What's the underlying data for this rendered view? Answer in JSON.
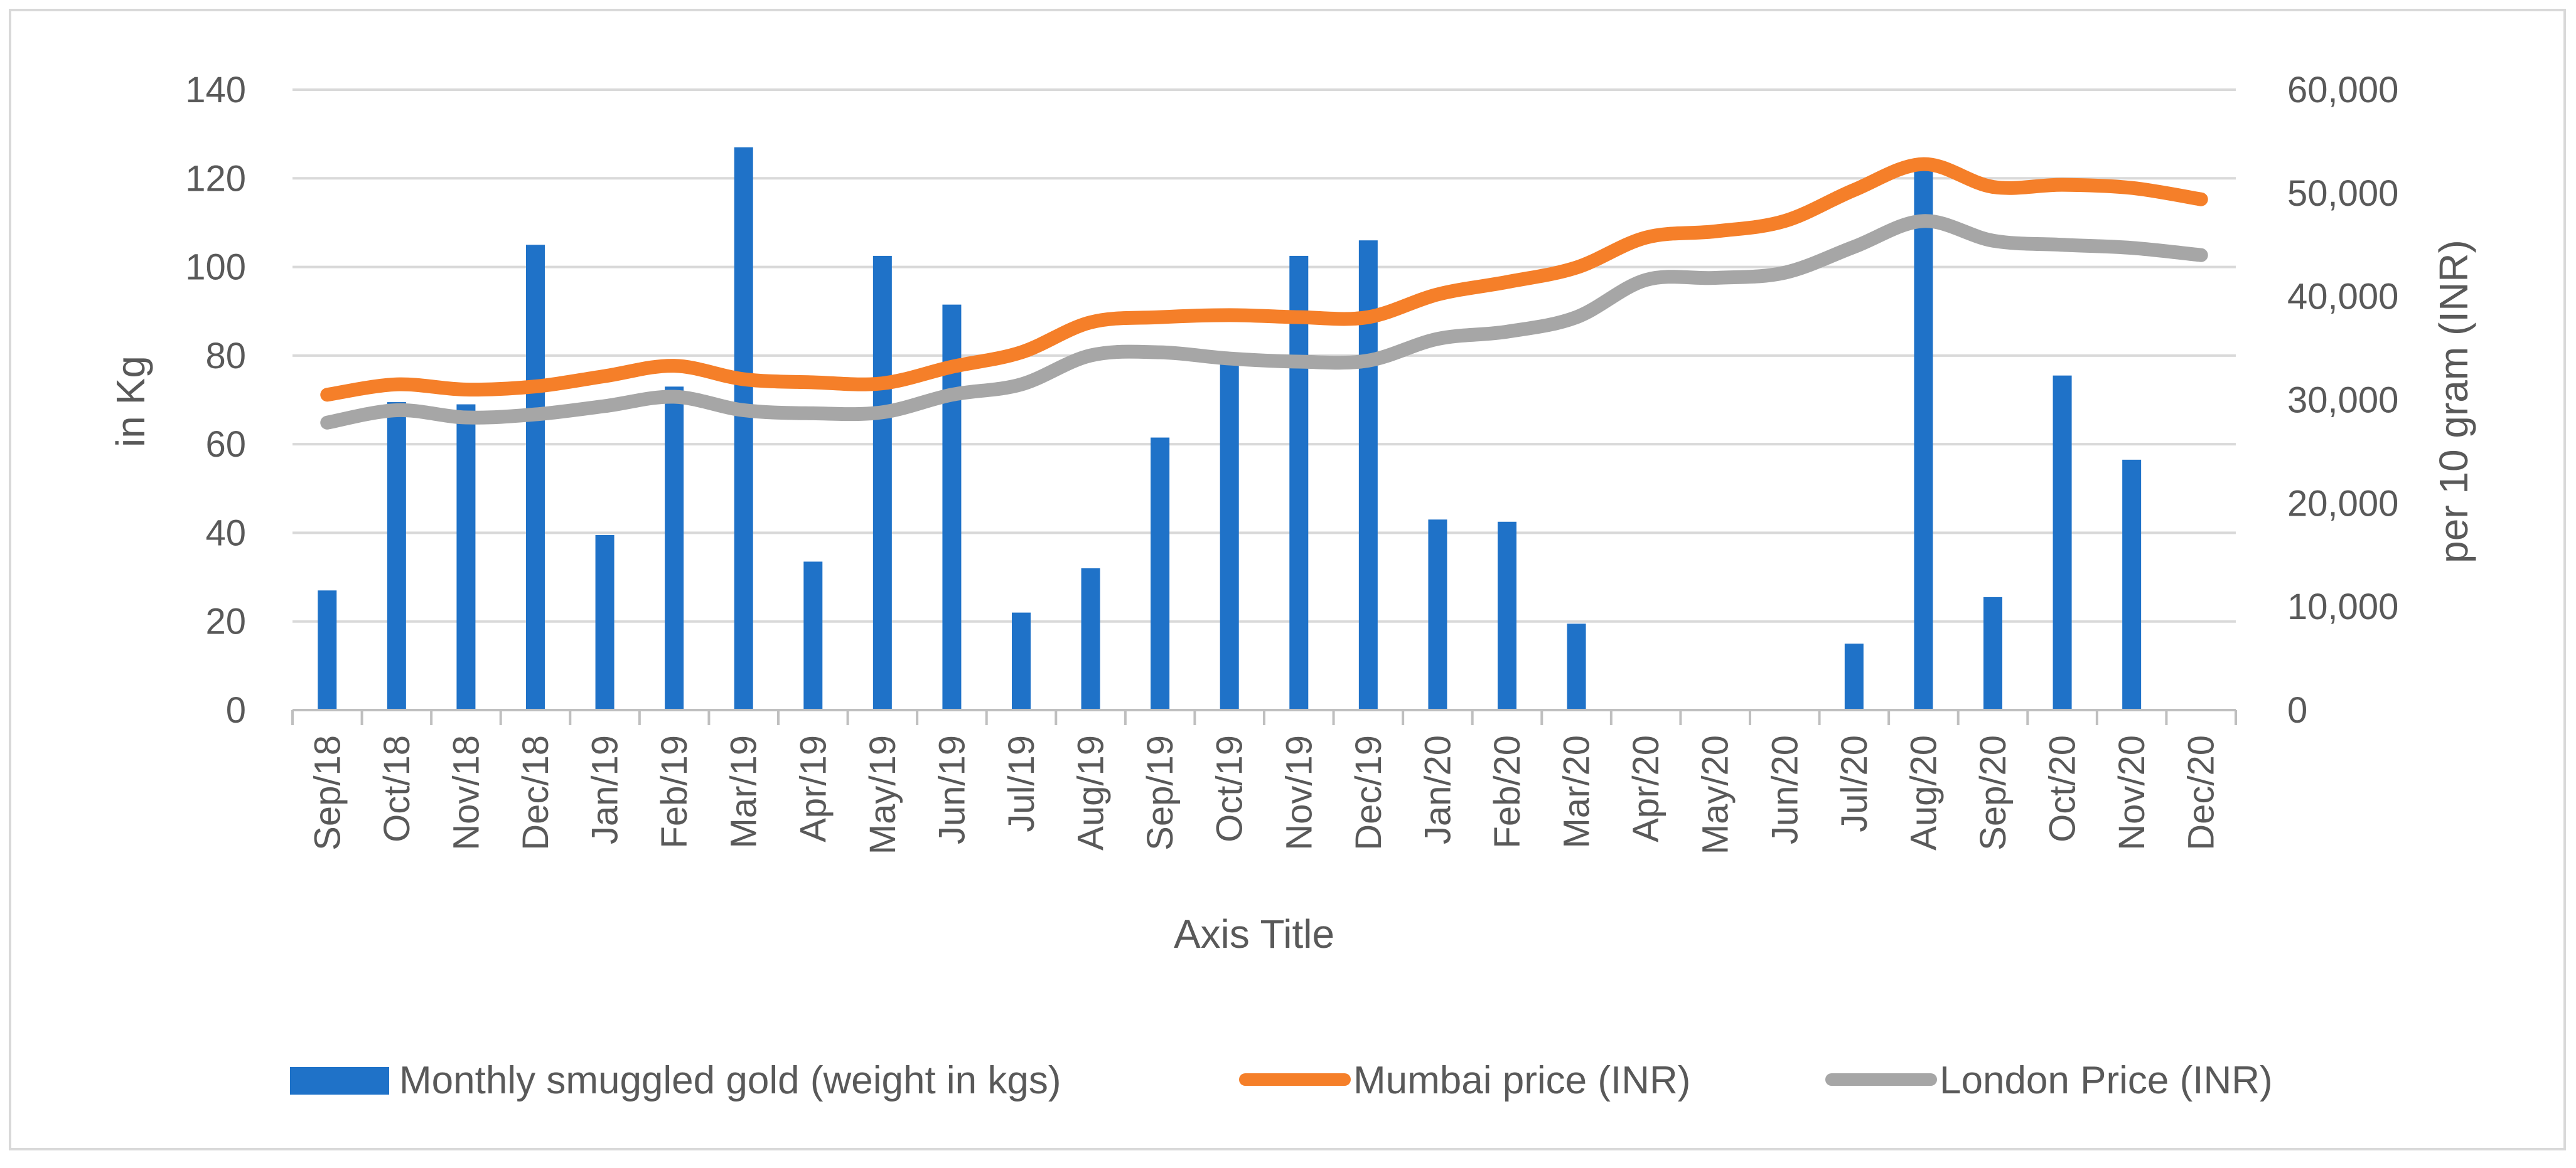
{
  "chart_data": {
    "type": "bar+line",
    "title": "",
    "xlabel": "Axis Title",
    "ylabel_left": "in Kg",
    "ylabel_right": "per 10 gram (INR)",
    "ylim_left": [
      0,
      140
    ],
    "ylim_right": [
      0,
      60000
    ],
    "yticks_left": [
      "0",
      "20",
      "40",
      "60",
      "80",
      "100",
      "120",
      "140"
    ],
    "yticks_right": [
      "0",
      "10,000",
      "20,000",
      "30,000",
      "40,000",
      "50,000",
      "60,000"
    ],
    "grid": true,
    "legend_position": "bottom",
    "categories": [
      "Sep/18",
      "Oct/18",
      "Nov/18",
      "Dec/18",
      "Jan/19",
      "Feb/19",
      "Mar/19",
      "Apr/19",
      "May/19",
      "Jun/19",
      "Jul/19",
      "Aug/19",
      "Sep/19",
      "Oct/19",
      "Nov/19",
      "Dec/19",
      "Jan/20",
      "Feb/20",
      "Mar/20",
      "Apr/20",
      "May/20",
      "Jun/20",
      "Jul/20",
      "Aug/20",
      "Sep/20",
      "Oct/20",
      "Nov/20",
      "Dec/20"
    ],
    "series": [
      {
        "name": "Monthly smuggled gold (weight in kgs)",
        "type": "bar",
        "axis": "left",
        "color": "#1f72c8",
        "values": [
          27,
          69.5,
          69,
          105,
          39.5,
          73,
          127,
          33.5,
          102.5,
          91.5,
          22,
          32,
          61.5,
          78.5,
          102.5,
          106,
          43,
          42.5,
          19.5,
          0,
          0,
          0,
          15,
          124,
          25.5,
          75.5,
          56.5,
          0
        ]
      },
      {
        "name": "Mumbai price (INR)",
        "type": "line",
        "axis": "right",
        "color": "#f57f29",
        "values": [
          30500,
          31500,
          31000,
          31300,
          32300,
          33300,
          32000,
          31700,
          31600,
          33200,
          34600,
          37500,
          38000,
          38200,
          38000,
          38000,
          40200,
          41400,
          42800,
          45700,
          46300,
          47300,
          50300,
          52800,
          50600,
          50800,
          50500,
          49400
        ]
      },
      {
        "name": "London Price (INR)",
        "type": "line",
        "axis": "right",
        "color": "#a6a6a6",
        "values": [
          27800,
          29000,
          28300,
          28600,
          29400,
          30300,
          29000,
          28700,
          28800,
          30500,
          31500,
          34300,
          34600,
          34000,
          33700,
          33800,
          35900,
          36600,
          38000,
          41600,
          41800,
          42300,
          44800,
          47300,
          45400,
          45000,
          44700,
          44000
        ]
      }
    ]
  }
}
